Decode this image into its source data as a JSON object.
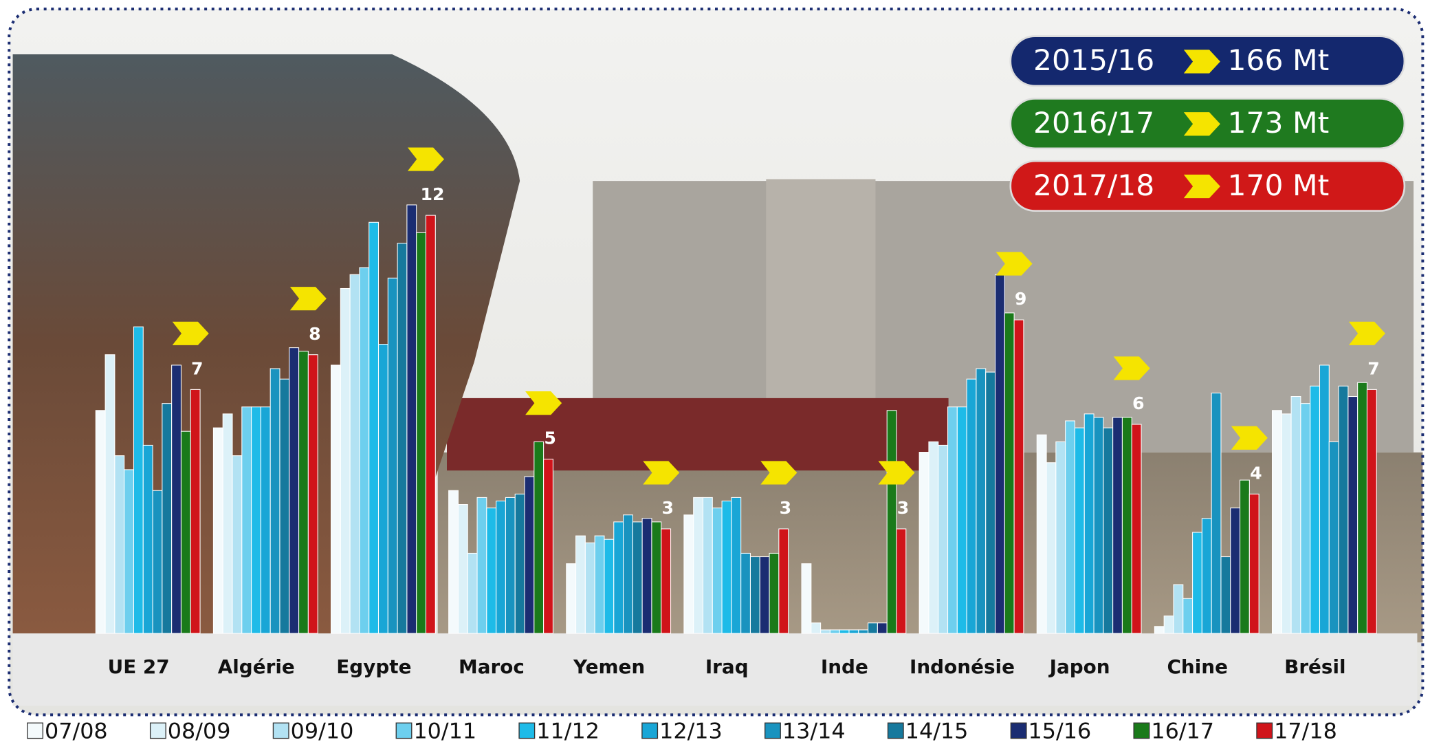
{
  "chart_data": {
    "type": "bar",
    "categories": [
      "UE 27",
      "Algérie",
      "Egypte",
      "Maroc",
      "Yemen",
      "Iraq",
      "Inde",
      "Indonésie",
      "Japon",
      "Chine",
      "Brésil"
    ],
    "ylim": [
      0,
      18
    ],
    "series": [
      {
        "name": "07/08",
        "color": "#f4fafc",
        "values": [
          6.4,
          5.9,
          7.7,
          4.1,
          2.0,
          3.4,
          2.0,
          5.2,
          5.7,
          0.2,
          6.4
        ]
      },
      {
        "name": "08/09",
        "color": "#dcf1f8",
        "values": [
          8.0,
          6.3,
          9.9,
          3.7,
          2.8,
          3.9,
          0.3,
          5.5,
          4.9,
          0.5,
          6.3
        ]
      },
      {
        "name": "09/10",
        "color": "#b2e2f3",
        "values": [
          5.1,
          5.1,
          10.3,
          2.3,
          2.6,
          3.9,
          0.1,
          5.4,
          5.5,
          1.4,
          6.8
        ]
      },
      {
        "name": "10/11",
        "color": "#6dcfee",
        "values": [
          4.7,
          6.5,
          10.5,
          3.9,
          2.8,
          3.6,
          0.1,
          6.5,
          6.1,
          1.0,
          6.6
        ]
      },
      {
        "name": "11/12",
        "color": "#1ebbe8",
        "values": [
          8.8,
          6.5,
          11.8,
          3.6,
          2.7,
          3.8,
          0.1,
          6.5,
          5.9,
          2.9,
          7.1
        ]
      },
      {
        "name": "12/13",
        "color": "#19a6d6",
        "values": [
          5.4,
          6.5,
          8.3,
          3.8,
          3.2,
          3.9,
          0.1,
          7.3,
          6.3,
          3.3,
          7.7
        ]
      },
      {
        "name": "13/14",
        "color": "#1993bf",
        "values": [
          4.1,
          7.6,
          10.2,
          3.9,
          3.4,
          2.3,
          0.1,
          7.6,
          6.2,
          6.9,
          5.5
        ]
      },
      {
        "name": "14/15",
        "color": "#16799d",
        "values": [
          6.6,
          7.3,
          11.2,
          4.0,
          3.2,
          2.2,
          0.3,
          7.5,
          5.9,
          2.2,
          7.1
        ]
      },
      {
        "name": "15/16",
        "color": "#1b2d72",
        "values": [
          7.7,
          8.2,
          12.3,
          4.5,
          3.3,
          2.2,
          0.3,
          10.3,
          6.2,
          3.6,
          6.8
        ]
      },
      {
        "name": "16/17",
        "color": "#1a7a1a",
        "values": [
          5.8,
          8.1,
          11.5,
          5.5,
          3.2,
          2.3,
          6.4,
          9.2,
          6.2,
          4.4,
          7.2
        ]
      },
      {
        "name": "17/18",
        "color": "#d0141a",
        "values": [
          7,
          8,
          12,
          5,
          3,
          3,
          3,
          9,
          6,
          4,
          7
        ]
      }
    ],
    "badges": [
      {
        "label": "2015/16",
        "value": "166 Mt",
        "color": "#14286e"
      },
      {
        "label": "2016/17",
        "value": "173 Mt",
        "color": "#1f7a1f"
      },
      {
        "label": "2017/18",
        "value": "170 Mt",
        "color": "#d01818"
      }
    ],
    "labeled_series": 10
  }
}
